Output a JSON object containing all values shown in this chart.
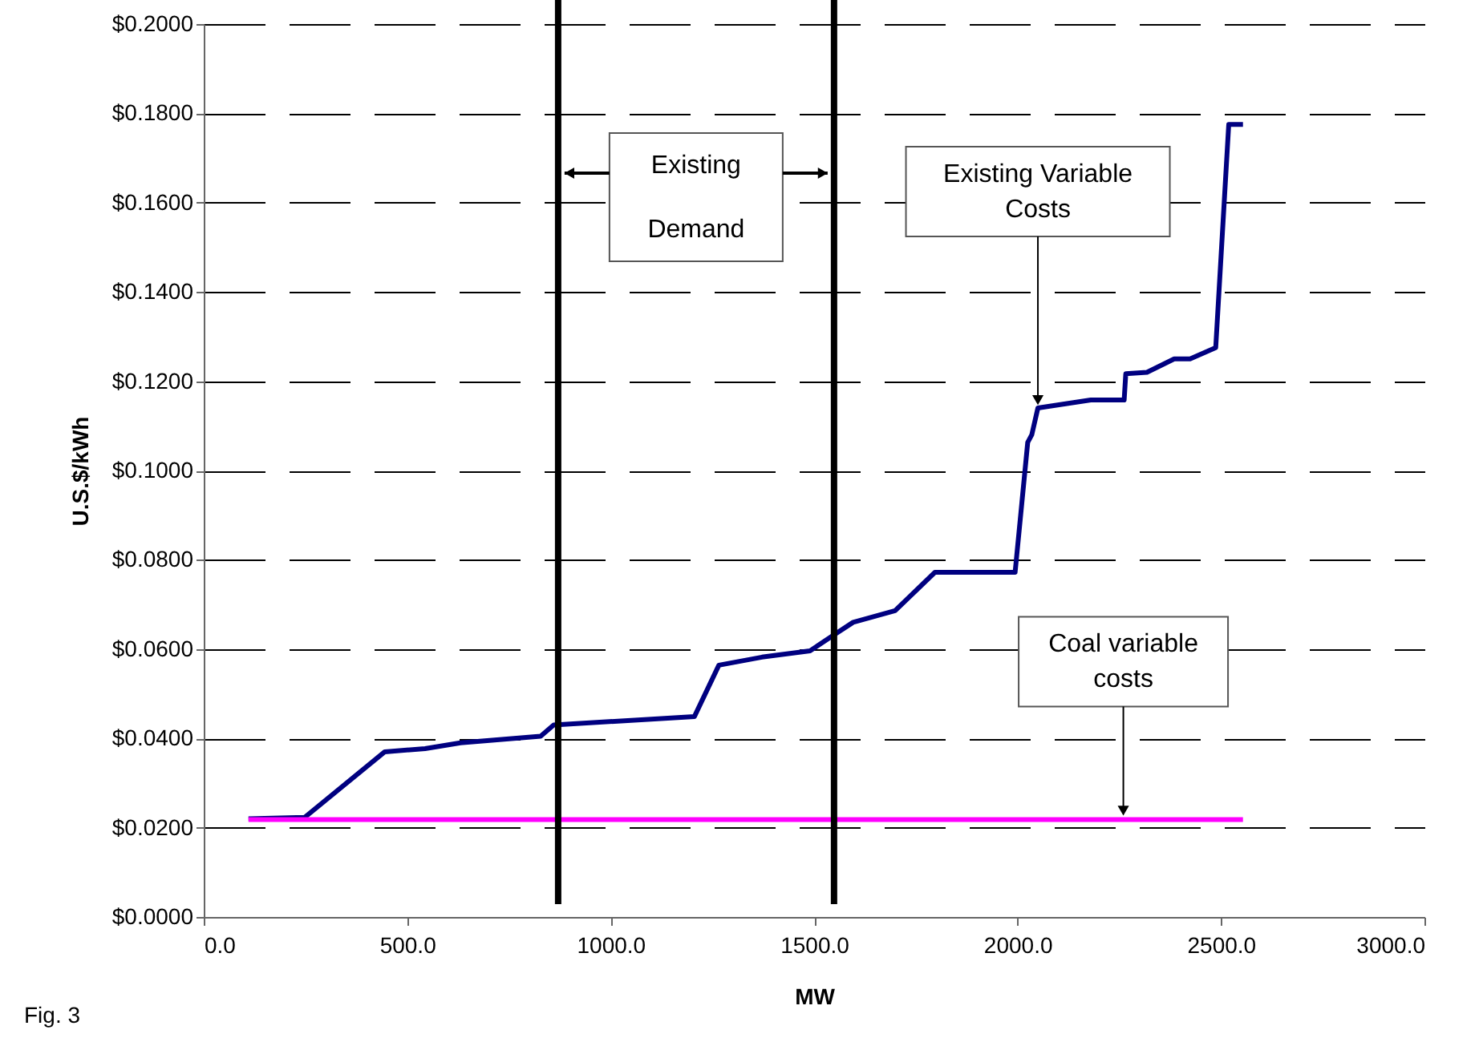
{
  "chart_data": {
    "type": "line",
    "xlabel": "MW",
    "ylabel": "U.S.$/kWh",
    "series": [
      {
        "color": "#000080",
        "x": [
          110,
          248,
          445,
          544,
          631,
          828,
          860,
          1206,
          1266,
          1372,
          1490,
          1549,
          1596,
          1699,
          1797,
          1994,
          2025,
          2035,
          2050,
          2180,
          2262,
          2266,
          2318,
          2385,
          2424,
          2487,
          2519,
          2554
        ],
        "values": [
          0.022,
          0.0223,
          0.037,
          0.0377,
          0.039,
          0.0405,
          0.043,
          0.0449,
          0.0564,
          0.0582,
          0.0596,
          0.0632,
          0.066,
          0.0686,
          0.0772,
          0.0772,
          0.1063,
          0.108,
          0.114,
          0.1158,
          0.1158,
          0.1217,
          0.122,
          0.125,
          0.125,
          0.1275,
          0.1775,
          0.1775
        ]
      },
      {
        "color": "#ff00ff",
        "x": [
          110,
          2554
        ],
        "values": [
          0.0218,
          0.0218
        ]
      }
    ],
    "xlim": [
      0,
      3000
    ],
    "xticks": [
      {
        "value": 0,
        "label": "0.0"
      },
      {
        "value": 500,
        "label": "500.0"
      },
      {
        "value": 1000,
        "label": "1000.0"
      },
      {
        "value": 1500,
        "label": "1500.0"
      },
      {
        "value": 2000,
        "label": "2000.0"
      },
      {
        "value": 2500,
        "label": "2500.0"
      },
      {
        "value": 3000,
        "label": "3000.0"
      }
    ],
    "ylim": [
      0,
      0.2
    ],
    "yticks": [
      {
        "value": 0,
        "label": "$0.0000"
      },
      {
        "value": 0.02,
        "label": "$0.0200"
      },
      {
        "value": 0.04,
        "label": "$0.0400"
      },
      {
        "value": 0.06,
        "label": "$0.0600"
      },
      {
        "value": 0.08,
        "label": "$0.0800"
      },
      {
        "value": 0.1,
        "label": "$0.1000"
      },
      {
        "value": 0.12,
        "label": "$0.1200"
      },
      {
        "value": 0.14,
        "label": "$0.1400"
      },
      {
        "value": 0.16,
        "label": "$0.1600"
      },
      {
        "value": 0.18,
        "label": "$0.1800"
      },
      {
        "value": 0.2,
        "label": "$0.2000"
      }
    ],
    "grid": "y",
    "line_style": "solid",
    "marker": "none",
    "ref_lines": [
      {
        "axis": "x",
        "value": 871,
        "color": "#000000"
      },
      {
        "axis": "x",
        "value": 1549,
        "color": "#000000"
      }
    ],
    "annotations": [
      "Existing\nDemand",
      {
        "text": "Existing Variable\nCosts",
        "x": 2050,
        "y": 0.114
      },
      {
        "text": "Coal variable\ncosts",
        "x": 2260,
        "y": 0.022
      },
      "Fig. 3"
    ]
  }
}
